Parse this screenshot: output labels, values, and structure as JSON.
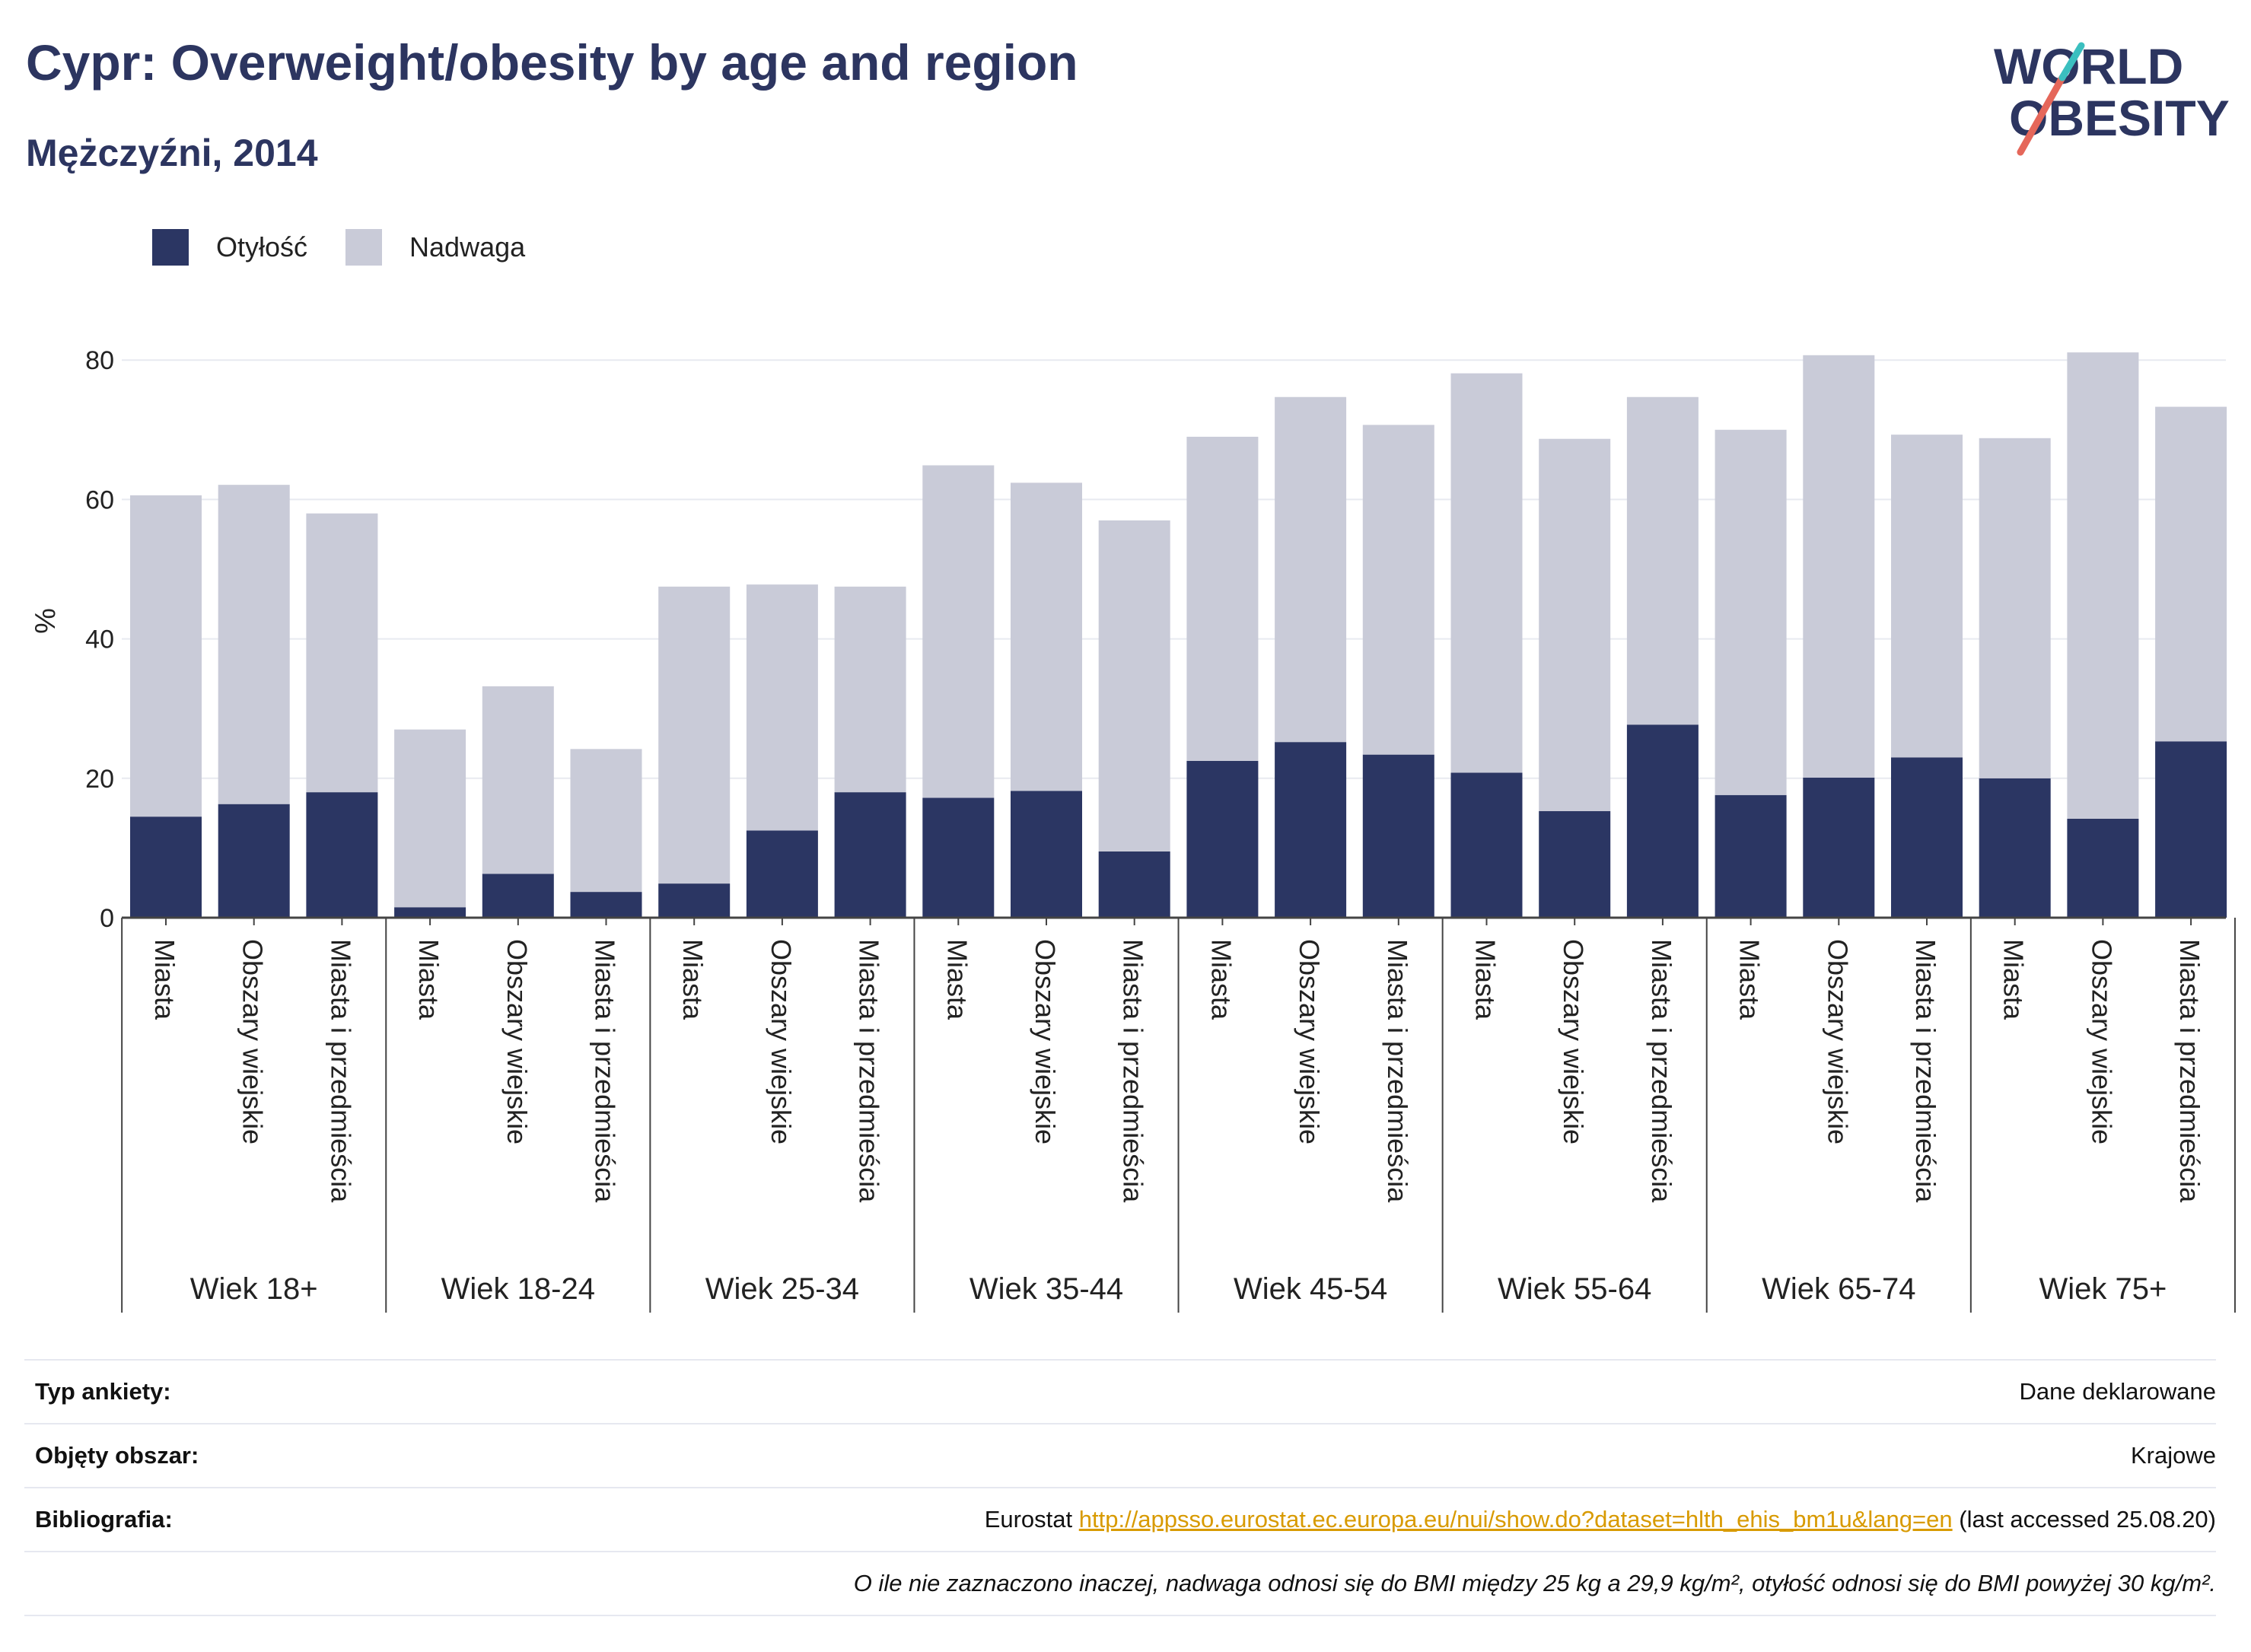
{
  "header": {
    "title": "Cypr: Overweight/obesity by age and region",
    "subtitle": "Mężczyźni, 2014"
  },
  "logo": {
    "line1": "WORLD",
    "line2": "OBESITY"
  },
  "legend": [
    {
      "label": "Otyłość",
      "color": "#2b3663"
    },
    {
      "label": "Nadwaga",
      "color": "#c9cbd8"
    }
  ],
  "chart_data": {
    "type": "bar",
    "stacked": true,
    "ylabel": "%",
    "ylim": [
      0,
      85
    ],
    "yticks": [
      0,
      20,
      40,
      60,
      80
    ],
    "grid": true,
    "legend_position": "top-left",
    "groups": [
      "Wiek 18+",
      "Wiek 18-24",
      "Wiek 25-34",
      "Wiek 35-44",
      "Wiek 45-54",
      "Wiek 55-64",
      "Wiek 65-74",
      "Wiek 75+"
    ],
    "subcategories": [
      "Miasta",
      "Obszary wiejskie",
      "Miasta i przedmieścia"
    ],
    "series": [
      {
        "name": "Otyłość",
        "color": "#2b3663",
        "values": [
          14.5,
          16.3,
          18.0,
          1.5,
          6.3,
          3.7,
          4.9,
          12.5,
          18.0,
          17.2,
          18.2,
          9.5,
          22.5,
          25.2,
          23.4,
          20.8,
          15.3,
          27.7,
          17.6,
          20.1,
          23.0,
          20.0,
          14.2,
          25.3
        ]
      },
      {
        "name": "Nadwaga",
        "color": "#c9cbd8",
        "values": [
          46.1,
          45.8,
          40.0,
          25.5,
          26.9,
          20.5,
          42.6,
          35.3,
          29.5,
          47.7,
          44.2,
          47.5,
          46.5,
          49.5,
          47.3,
          57.3,
          53.4,
          47.0,
          52.4,
          60.6,
          46.3,
          48.8,
          66.9,
          48.0
        ]
      }
    ]
  },
  "meta": {
    "survey_type_label": "Typ ankiety:",
    "survey_type_value": "Dane deklarowane",
    "area_label": "Objęty obszar:",
    "area_value": "Krajowe",
    "bibliography_label": "Bibliografia:",
    "bibliography_prefix": "Eurostat",
    "bibliography_link": "http://appsso.eurostat.ec.europa.eu/nui/show.do?dataset=hlth_ehis_bm1u&lang=en",
    "bibliography_suffix": "(last accessed 25.08.20)",
    "note": "O ile nie zaznaczono inaczej, nadwaga odnosi się do BMI między 25 kg a 29,9 kg/m², otyłość odnosi się do BMI powyżej 30 kg/m²."
  }
}
